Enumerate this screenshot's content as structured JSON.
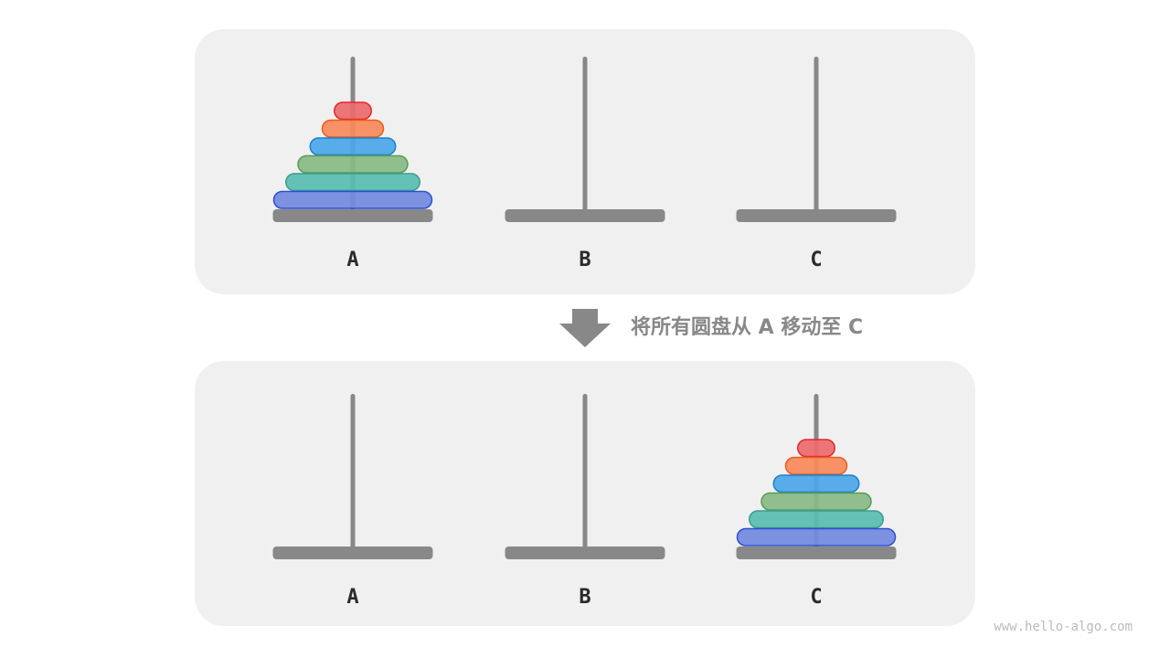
{
  "caption": "将所有圆盘从 A 移动至 C",
  "watermark": "www.hello-algo.com",
  "rods": [
    "A",
    "B",
    "C"
  ],
  "disks": [
    {
      "size": 1,
      "fill": "#ec6a6e",
      "stroke": "#e3262c"
    },
    {
      "size": 2,
      "fill": "#f98a5a",
      "stroke": "#ee5a17"
    },
    {
      "size": 3,
      "fill": "#4aa6e8",
      "stroke": "#1b80d0"
    },
    {
      "size": 4,
      "fill": "#88bb84",
      "stroke": "#5a9b56"
    },
    {
      "size": 5,
      "fill": "#57bdb0",
      "stroke": "#3d9c8f"
    },
    {
      "size": 6,
      "fill": "#728ade",
      "stroke": "#2b4ed0"
    }
  ],
  "states": [
    {
      "disks_on_rod": "A"
    },
    {
      "disks_on_rod": "C"
    }
  ],
  "colors": {
    "panel": "#f0f0f0",
    "rod": "#888888",
    "arrow": "#888888"
  }
}
